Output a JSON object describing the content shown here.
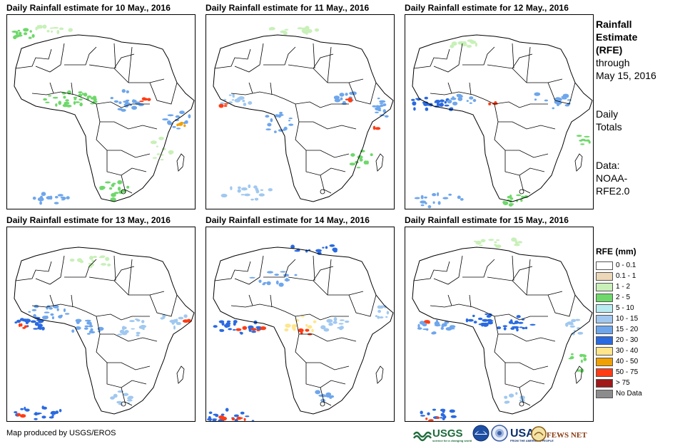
{
  "panels": [
    {
      "title": "Daily Rainfall estimate for 10 May., 2016"
    },
    {
      "title": "Daily Rainfall estimate for 11 May., 2016"
    },
    {
      "title": "Daily Rainfall estimate for 12 May., 2016"
    },
    {
      "title": "Daily Rainfall estimate for 13 May., 2016"
    },
    {
      "title": "Daily Rainfall estimate for 14 May., 2016"
    },
    {
      "title": "Daily Rainfall estimate for 15 May., 2016"
    }
  ],
  "side": {
    "line1": "Rainfall",
    "line2": "Estimate",
    "line3": "(RFE)",
    "line4": "through",
    "line5": "May 15, 2016",
    "line6": "Daily",
    "line7": "Totals",
    "line8": "Data:",
    "line9": "NOAA-",
    "line10": "RFE2.0"
  },
  "legend": {
    "title": "RFE (mm)",
    "items": [
      {
        "label": "0 - 0.1",
        "color": "#ffffff"
      },
      {
        "label": "0.1 - 1",
        "color": "#ecd8b8"
      },
      {
        "label": "1 - 2",
        "color": "#c8f0b8"
      },
      {
        "label": "2 - 5",
        "color": "#6ed86a"
      },
      {
        "label": "5 - 10",
        "color": "#b8ecf2"
      },
      {
        "label": "10 - 15",
        "color": "#a0c8f0"
      },
      {
        "label": "15 - 20",
        "color": "#6ea6ec"
      },
      {
        "label": "20 - 30",
        "color": "#2a6ae0"
      },
      {
        "label": "30 - 40",
        "color": "#ffe68a"
      },
      {
        "label": "40 - 50",
        "color": "#f0a000"
      },
      {
        "label": "50 - 75",
        "color": "#ff3c14"
      },
      {
        "label": "> 75",
        "color": "#a01818"
      },
      {
        "label": "No Data",
        "color": "#8c8c8c"
      }
    ]
  },
  "credit": "Map produced by USGS/EROS",
  "logos": {
    "usgs": "USGS",
    "usgs_tagline": "science for a changing world",
    "usaid": "USAID",
    "usaid_tagline": "FROM THE AMERICAN PEOPLE",
    "fews": "FEWS NET"
  }
}
